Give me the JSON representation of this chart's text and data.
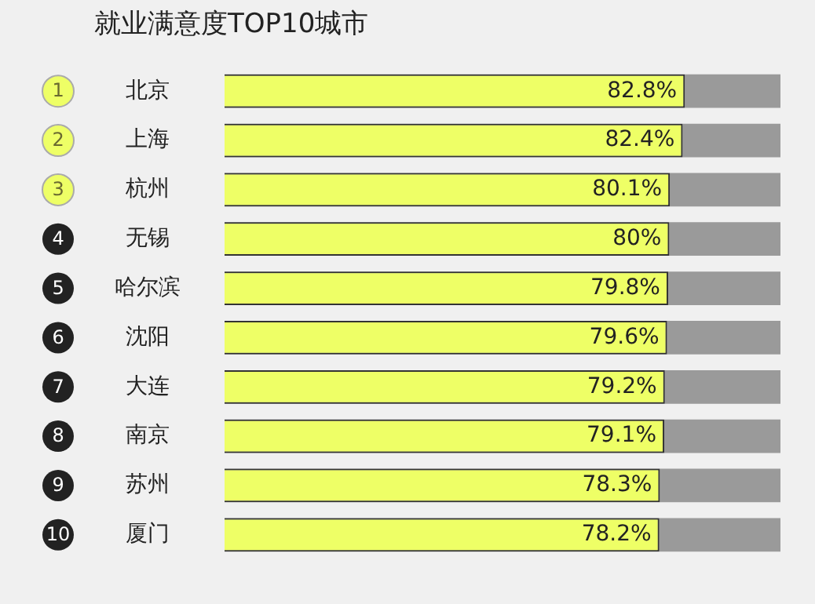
{
  "chart_data": {
    "type": "bar",
    "orientation": "horizontal",
    "title": "就业满意度TOP10城市",
    "categories": [
      "北京",
      "上海",
      "杭州",
      "无锡",
      "哈尔滨",
      "沈阳",
      "大连",
      "南京",
      "苏州",
      "厦门"
    ],
    "values": [
      82.8,
      82.4,
      80.1,
      80,
      79.8,
      79.6,
      79.2,
      79.1,
      78.3,
      78.2
    ],
    "value_labels": [
      "82.8%",
      "82.4%",
      "80.1%",
      "80%",
      "79.8%",
      "79.6%",
      "79.2%",
      "79.1%",
      "78.3%",
      "78.2%"
    ],
    "color": "#eeff66",
    "xlim": [
      0,
      100
    ],
    "tick_labels": "y",
    "grid": false,
    "legend": false,
    "annotations": [
      "1",
      "2",
      "3",
      "4",
      "5",
      "6",
      "7",
      "8",
      "9",
      "10"
    ]
  }
}
